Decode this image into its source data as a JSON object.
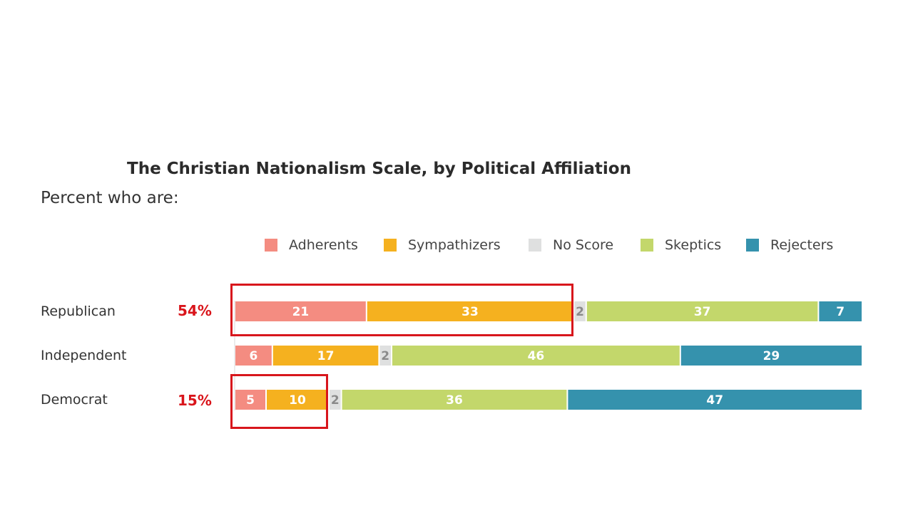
{
  "chart_data": {
    "type": "bar",
    "orientation": "horizontal",
    "stacked": true,
    "title": "The Christian Nationalism Scale, by Political Affiliation",
    "subtitle": "Percent who are:",
    "categories": [
      "Republican",
      "Independent",
      "Democrat"
    ],
    "series": [
      {
        "name": "Adherents",
        "color": "#f48c81",
        "values": [
          21,
          6,
          5
        ]
      },
      {
        "name": "Sympathizers",
        "color": "#f5b11f",
        "values": [
          33,
          17,
          10
        ]
      },
      {
        "name": "No Score",
        "color": "#dfe0e0",
        "values": [
          2,
          2,
          2
        ]
      },
      {
        "name": "Skeptics",
        "color": "#c3d76b",
        "values": [
          37,
          46,
          36
        ]
      },
      {
        "name": "Rejecters",
        "color": "#3592ad",
        "values": [
          7,
          29,
          47
        ]
      }
    ],
    "xlim": [
      0,
      100
    ],
    "legend_position": "top",
    "annotations": [
      {
        "category": "Republican",
        "text": "54%"
      },
      {
        "category": "Democrat",
        "text": "15%"
      }
    ]
  },
  "colors": {
    "highlight": "#d8161c",
    "annotation": "#d9151b",
    "no_score_text": "#8a8a8a"
  }
}
